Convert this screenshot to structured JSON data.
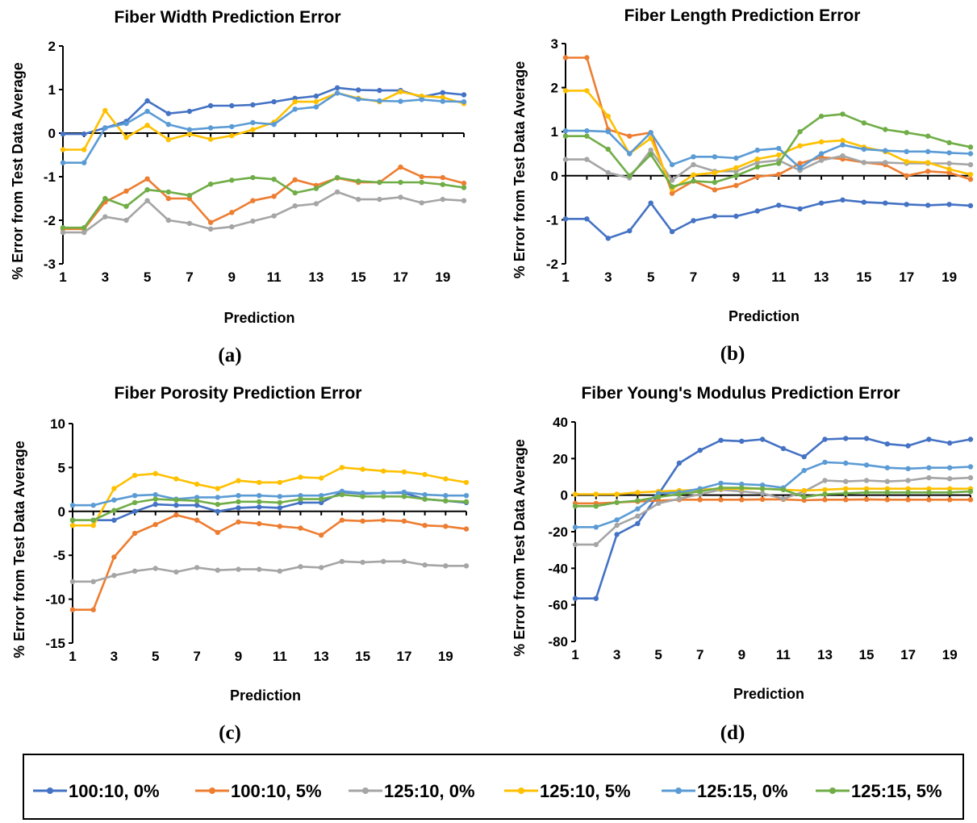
{
  "colors": [
    "#4472C4",
    "#ED7D31",
    "#A5A5A5",
    "#FFC000",
    "#5B9BD5",
    "#70AD47"
  ],
  "legend": [
    "100:10, 0%",
    "100:10, 5%",
    "125:10, 0%",
    "125:10, 5%",
    "125:15, 0%",
    "125:15, 5%"
  ],
  "chart_data": [
    {
      "type": "line",
      "title": "Fiber Width Prediction Error",
      "xlabel": "Prediction",
      "ylabel": "% Error from Test Data Average",
      "panel_label": "(a)",
      "x": [
        1,
        2,
        3,
        4,
        5,
        6,
        7,
        8,
        9,
        10,
        11,
        12,
        13,
        14,
        15,
        16,
        17,
        18,
        19,
        20
      ],
      "xticks": [
        "1",
        "3",
        "5",
        "7",
        "9",
        "11",
        "13",
        "15",
        "17",
        "19"
      ],
      "ylim": [
        -3,
        2
      ],
      "yticks": [
        "2",
        "1",
        "0",
        "-1",
        "-2",
        "-3"
      ],
      "series": [
        {
          "name": "100:10, 0%",
          "values": [
            -0.02,
            -0.02,
            0.12,
            0.27,
            0.74,
            0.45,
            0.5,
            0.63,
            0.63,
            0.65,
            0.72,
            0.8,
            0.85,
            1.04,
            0.99,
            0.98,
            0.98,
            0.83,
            0.93,
            0.88
          ]
        },
        {
          "name": "100:10, 5%",
          "values": [
            -2.2,
            -2.2,
            -1.58,
            -1.33,
            -1.05,
            -1.5,
            -1.5,
            -2.05,
            -1.82,
            -1.55,
            -1.45,
            -1.07,
            -1.2,
            -1.03,
            -1.13,
            -1.13,
            -0.78,
            -1.0,
            -1.02,
            -1.15
          ]
        },
        {
          "name": "125:10, 0%",
          "values": [
            -2.28,
            -2.28,
            -1.92,
            -2.0,
            -1.55,
            -2.0,
            -2.07,
            -2.2,
            -2.15,
            -2.02,
            -1.9,
            -1.67,
            -1.62,
            -1.35,
            -1.52,
            -1.52,
            -1.47,
            -1.6,
            -1.52,
            -1.55
          ]
        },
        {
          "name": "125:10, 5%",
          "values": [
            -0.38,
            -0.38,
            0.52,
            -0.1,
            0.18,
            -0.15,
            -0.02,
            -0.14,
            -0.06,
            0.08,
            0.25,
            0.72,
            0.72,
            0.92,
            0.8,
            0.72,
            0.95,
            0.85,
            0.82,
            0.68
          ]
        },
        {
          "name": "125:15, 0%",
          "values": [
            -0.68,
            -0.68,
            0.12,
            0.22,
            0.5,
            0.2,
            0.08,
            0.12,
            0.15,
            0.24,
            0.2,
            0.55,
            0.6,
            0.92,
            0.78,
            0.74,
            0.73,
            0.77,
            0.73,
            0.72
          ]
        },
        {
          "name": "125:15, 5%",
          "values": [
            -2.17,
            -2.17,
            -1.5,
            -1.68,
            -1.3,
            -1.35,
            -1.43,
            -1.17,
            -1.08,
            -1.02,
            -1.06,
            -1.37,
            -1.27,
            -1.02,
            -1.1,
            -1.13,
            -1.13,
            -1.13,
            -1.18,
            -1.25
          ]
        }
      ]
    },
    {
      "type": "line",
      "title": "Fiber Length Prediction Error",
      "xlabel": "Prediction",
      "ylabel": "% Error from Test Data Average",
      "panel_label": "(b)",
      "x": [
        1,
        2,
        3,
        4,
        5,
        6,
        7,
        8,
        9,
        10,
        11,
        12,
        13,
        14,
        15,
        16,
        17,
        18,
        19,
        20
      ],
      "xticks": [
        "1",
        "3",
        "5",
        "7",
        "9",
        "11",
        "13",
        "15",
        "17",
        "19"
      ],
      "ylim": [
        -2,
        3
      ],
      "yticks": [
        "3",
        "2",
        "1",
        "0",
        "-1",
        "-2"
      ],
      "series": [
        {
          "name": "100:10, 0%",
          "values": [
            -0.98,
            -0.98,
            -1.42,
            -1.25,
            -0.62,
            -1.27,
            -1.02,
            -0.92,
            -0.92,
            -0.8,
            -0.67,
            -0.75,
            -0.62,
            -0.55,
            -0.6,
            -0.62,
            -0.65,
            -0.67,
            -0.65,
            -0.68
          ]
        },
        {
          "name": "100:10, 5%",
          "values": [
            2.68,
            2.68,
            1.05,
            0.9,
            0.98,
            -0.4,
            -0.12,
            -0.32,
            -0.22,
            -0.02,
            0.03,
            0.28,
            0.42,
            0.38,
            0.3,
            0.25,
            0.0,
            0.1,
            0.07,
            -0.08
          ]
        },
        {
          "name": "125:10, 0%",
          "values": [
            0.37,
            0.37,
            0.07,
            -0.05,
            0.58,
            -0.1,
            0.25,
            0.1,
            0.1,
            0.3,
            0.35,
            0.12,
            0.35,
            0.45,
            0.3,
            0.3,
            0.28,
            0.28,
            0.28,
            0.25
          ]
        },
        {
          "name": "125:10, 5%",
          "values": [
            1.93,
            1.93,
            1.35,
            0.5,
            0.85,
            -0.3,
            0.02,
            0.07,
            0.18,
            0.38,
            0.47,
            0.68,
            0.77,
            0.8,
            0.65,
            0.55,
            0.32,
            0.3,
            0.15,
            0.03
          ]
        },
        {
          "name": "125:15, 0%",
          "values": [
            1.02,
            1.02,
            1.0,
            0.5,
            0.98,
            0.25,
            0.43,
            0.43,
            0.4,
            0.58,
            0.62,
            0.18,
            0.5,
            0.7,
            0.6,
            0.57,
            0.55,
            0.55,
            0.52,
            0.5
          ]
        },
        {
          "name": "125:15, 5%",
          "values": [
            0.9,
            0.9,
            0.6,
            0.0,
            0.48,
            -0.25,
            -0.12,
            -0.15,
            0.0,
            0.2,
            0.28,
            1.0,
            1.35,
            1.4,
            1.2,
            1.05,
            0.98,
            0.9,
            0.75,
            0.65
          ]
        }
      ]
    },
    {
      "type": "line",
      "title": "Fiber Porosity Prediction Error",
      "xlabel": "Prediction",
      "ylabel": "% Error from Test Data Average",
      "panel_label": "(c)",
      "x": [
        1,
        2,
        3,
        4,
        5,
        6,
        7,
        8,
        9,
        10,
        11,
        12,
        13,
        14,
        15,
        16,
        17,
        18,
        19,
        20
      ],
      "xticks": [
        "1",
        "3",
        "5",
        "7",
        "9",
        "11",
        "13",
        "15",
        "17",
        "19"
      ],
      "ylim": [
        -15,
        10
      ],
      "yticks": [
        "10",
        "5",
        "0",
        "-5",
        "-10",
        "-15"
      ],
      "series": [
        {
          "name": "100:10, 0%",
          "values": [
            -1.0,
            -1.0,
            -1.0,
            0.0,
            0.8,
            0.7,
            0.7,
            0.0,
            0.4,
            0.5,
            0.4,
            1.0,
            1.0,
            2.2,
            2.0,
            2.1,
            2.1,
            1.4,
            1.2,
            1.0
          ]
        },
        {
          "name": "100:10, 5%",
          "values": [
            -11.2,
            -11.2,
            -5.2,
            -2.5,
            -1.5,
            -0.4,
            -1.0,
            -2.4,
            -1.2,
            -1.4,
            -1.7,
            -1.9,
            -2.7,
            -1.0,
            -1.1,
            -1.0,
            -1.1,
            -1.6,
            -1.7,
            -2.0
          ]
        },
        {
          "name": "125:10, 0%",
          "values": [
            -8.0,
            -8.0,
            -7.3,
            -6.8,
            -6.5,
            -6.9,
            -6.4,
            -6.7,
            -6.6,
            -6.6,
            -6.8,
            -6.3,
            -6.4,
            -5.7,
            -5.8,
            -5.7,
            -5.7,
            -6.1,
            -6.2,
            -6.2
          ]
        },
        {
          "name": "125:10, 5%",
          "values": [
            -1.6,
            -1.6,
            2.6,
            4.1,
            4.3,
            3.7,
            3.1,
            2.6,
            3.5,
            3.3,
            3.3,
            3.9,
            3.8,
            5.0,
            4.8,
            4.6,
            4.5,
            4.2,
            3.7,
            3.3
          ]
        },
        {
          "name": "125:15, 0%",
          "values": [
            0.7,
            0.7,
            1.3,
            1.8,
            1.9,
            1.4,
            1.6,
            1.6,
            1.8,
            1.8,
            1.7,
            1.8,
            1.8,
            2.3,
            2.1,
            2.1,
            2.2,
            1.9,
            1.8,
            1.8
          ]
        },
        {
          "name": "125:15, 5%",
          "values": [
            -1.0,
            -1.0,
            0.1,
            1.0,
            1.4,
            1.3,
            1.2,
            0.8,
            1.1,
            1.1,
            1.0,
            1.4,
            1.4,
            1.9,
            1.7,
            1.7,
            1.7,
            1.4,
            1.2,
            1.1
          ]
        }
      ]
    },
    {
      "type": "line",
      "title": "Fiber Young's Modulus Prediction Error",
      "xlabel": "Prediction",
      "ylabel": "% Error from Test Data Average",
      "panel_label": "(d)",
      "x": [
        1,
        2,
        3,
        4,
        5,
        6,
        7,
        8,
        9,
        10,
        11,
        12,
        13,
        14,
        15,
        16,
        17,
        18,
        19,
        20
      ],
      "xticks": [
        "1",
        "3",
        "5",
        "7",
        "9",
        "11",
        "13",
        "15",
        "17",
        "19"
      ],
      "ylim": [
        -80,
        40
      ],
      "yticks": [
        "40",
        "20",
        "0",
        "-20",
        "-40",
        "-60",
        "-80"
      ],
      "series": [
        {
          "name": "100:10, 0%",
          "values": [
            -56.5,
            -56.5,
            -21.5,
            -15.5,
            0.5,
            17.5,
            24.5,
            30.0,
            29.5,
            30.5,
            25.5,
            21.0,
            30.5,
            31.0,
            31.0,
            28.0,
            27.0,
            30.5,
            28.5,
            30.5
          ]
        },
        {
          "name": "100:10, 5%",
          "values": [
            -4.5,
            -4.5,
            -4.0,
            -3.5,
            -3.0,
            -2.5,
            -2.5,
            -2.5,
            -2.5,
            -2.3,
            -2.3,
            -2.8,
            -2.5,
            -2.5,
            -2.3,
            -2.5,
            -2.5,
            -2.5,
            -2.5,
            -2.5
          ]
        },
        {
          "name": "125:10, 0%",
          "values": [
            -27.0,
            -27.0,
            -16.5,
            -11.5,
            -4.5,
            -2.0,
            0.5,
            3.0,
            2.0,
            1.0,
            -2.0,
            2.0,
            8.0,
            7.5,
            8.0,
            7.5,
            8.0,
            9.5,
            9.0,
            9.5
          ]
        },
        {
          "name": "125:10, 5%",
          "values": [
            0.5,
            0.5,
            0.5,
            1.5,
            2.0,
            2.5,
            3.0,
            3.5,
            3.5,
            3.5,
            3.0,
            2.5,
            3.0,
            3.5,
            3.5,
            3.5,
            3.5,
            3.5,
            3.5,
            3.5
          ]
        },
        {
          "name": "125:15, 0%",
          "values": [
            -17.5,
            -17.5,
            -13.5,
            -7.5,
            1.0,
            1.5,
            3.5,
            6.5,
            6.0,
            5.5,
            4.0,
            13.5,
            18.0,
            17.5,
            16.5,
            15.0,
            14.5,
            15.0,
            15.0,
            15.5
          ]
        },
        {
          "name": "125:15, 5%",
          "values": [
            -6.0,
            -6.0,
            -4.0,
            -3.0,
            -1.0,
            0.5,
            2.0,
            4.0,
            4.0,
            3.5,
            3.0,
            -1.0,
            0.5,
            1.0,
            1.5,
            1.5,
            1.5,
            1.5,
            1.5,
            2.0
          ]
        }
      ]
    }
  ]
}
